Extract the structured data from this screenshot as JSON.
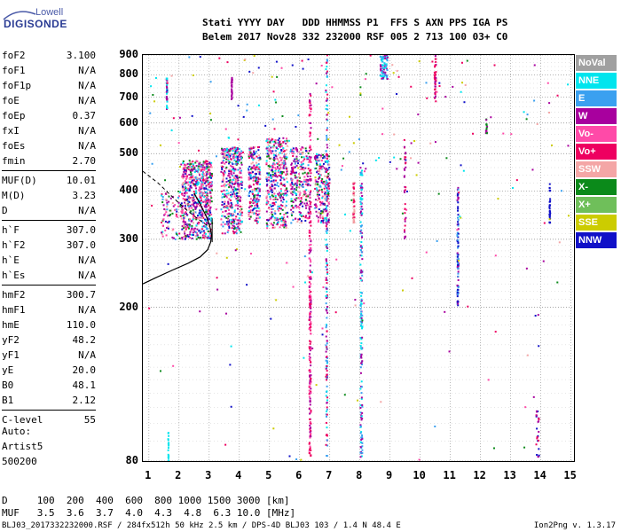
{
  "logo": {
    "top": "Lowell",
    "bottom": "DIGISONDE"
  },
  "header": {
    "line1": "Stati YYYY DAY   DDD HHMMSS P1  FFS S AXN PPS IGA PS",
    "line2": "Belem 2017 Nov28 332 232000 RSF 005 2 713 100 03+ C0"
  },
  "params": [
    {
      "name": "foF2",
      "value": "3.100"
    },
    {
      "name": "foF1",
      "value": "N/A"
    },
    {
      "name": "foF1p",
      "value": "N/A"
    },
    {
      "name": "foE",
      "value": "N/A"
    },
    {
      "name": "foEp",
      "value": "0.37"
    },
    {
      "name": "fxI",
      "value": "N/A"
    },
    {
      "name": "foEs",
      "value": "N/A"
    },
    {
      "name": "fmin",
      "value": "2.70"
    },
    {
      "sep": true
    },
    {
      "name": "MUF(D)",
      "value": "10.01"
    },
    {
      "name": "M(D)",
      "value": "3.23"
    },
    {
      "name": "D",
      "value": "N/A"
    },
    {
      "sep": true
    },
    {
      "name": "h`F",
      "value": "307.0"
    },
    {
      "name": "h`F2",
      "value": "307.0"
    },
    {
      "name": "h`E",
      "value": "N/A"
    },
    {
      "name": "h`Es",
      "value": "N/A"
    },
    {
      "sep": true
    },
    {
      "name": "hmF2",
      "value": "300.7"
    },
    {
      "name": "hmF1",
      "value": "N/A"
    },
    {
      "name": "hmE",
      "value": "110.0"
    },
    {
      "name": "yF2",
      "value": "48.2"
    },
    {
      "name": "yF1",
      "value": "N/A"
    },
    {
      "name": "yE",
      "value": "20.0"
    },
    {
      "name": "B0",
      "value": "48.1"
    },
    {
      "name": "B1",
      "value": "2.12"
    },
    {
      "sep": true
    },
    {
      "name": "C-level",
      "value": "55"
    }
  ],
  "auto": {
    "line1": "Auto:",
    "line2": "Artist5",
    "line3": "500200"
  },
  "muf_table": {
    "d_row": "D     100  200  400  600  800 1000 1500 3000 [km]",
    "muf_row": "MUF   3.5  3.6  3.7  4.0  4.3  4.8  6.3 10.0 [MHz]"
  },
  "footer": {
    "left": "BLJ03_2017332232000.RSF / 284fx512h 50 kHz 2.5 km / DPS-4D BLJ03 103 / 1.4 N 48.4 E",
    "right": "Ion2Png v. 1.3.17"
  },
  "legend": [
    {
      "label": "NoVal",
      "color": "#a0a0a0"
    },
    {
      "label": "NNE",
      "color": "#00e5ee"
    },
    {
      "label": "E",
      "color": "#3aa0f0"
    },
    {
      "label": "W",
      "color": "#a8009e"
    },
    {
      "label": "Vo-",
      "color": "#ff4aa8"
    },
    {
      "label": "Vo+",
      "color": "#ee0060"
    },
    {
      "label": "SSW",
      "color": "#f4a6a6"
    },
    {
      "label": "X-",
      "color": "#0b8a1a"
    },
    {
      "label": "X+",
      "color": "#6fbf5a"
    },
    {
      "label": "SSE",
      "color": "#cccc00"
    },
    {
      "label": "NNW",
      "color": "#1010c8"
    }
  ],
  "chart_data": {
    "type": "scatter",
    "title": "",
    "xlabel": "",
    "ylabel": "",
    "xlim": [
      0.8,
      15.1
    ],
    "ylim": [
      80,
      900
    ],
    "y_scale": "log",
    "x_ticks": [
      1,
      2,
      3,
      4,
      5,
      6,
      7,
      8,
      9,
      10,
      11,
      12,
      13,
      14,
      15
    ],
    "y_ticks": [
      80,
      200,
      300,
      400,
      500,
      600,
      700,
      800,
      900
    ],
    "grid": true,
    "traces": [
      {
        "name": "F2 trace (Vo+ / W)",
        "x_range": [
          2.0,
          3.2
        ],
        "y_range": [
          300,
          480
        ]
      },
      {
        "name": "F2 spread (W/Vo+)",
        "x_range": [
          3.5,
          6.5
        ],
        "y_range": [
          300,
          550
        ]
      },
      {
        "name": "vertical streak",
        "x": 6.35,
        "y_range": [
          80,
          720
        ]
      },
      {
        "name": "vertical streak",
        "x": 6.9,
        "y_range": [
          80,
          900
        ]
      },
      {
        "name": "vertical streak",
        "x": 8.05,
        "y_range": [
          80,
          460
        ]
      },
      {
        "name": "vertical streak",
        "x": 11.25,
        "y_range": [
          200,
          410
        ]
      },
      {
        "name": "vertical streak",
        "x": 14.3,
        "y_range": [
          330,
          420
        ]
      }
    ],
    "profile": {
      "hmF2": 300.7,
      "description": "electron density profile drawn from ~(0.8,230) curving to (3.1,300) and up"
    }
  }
}
